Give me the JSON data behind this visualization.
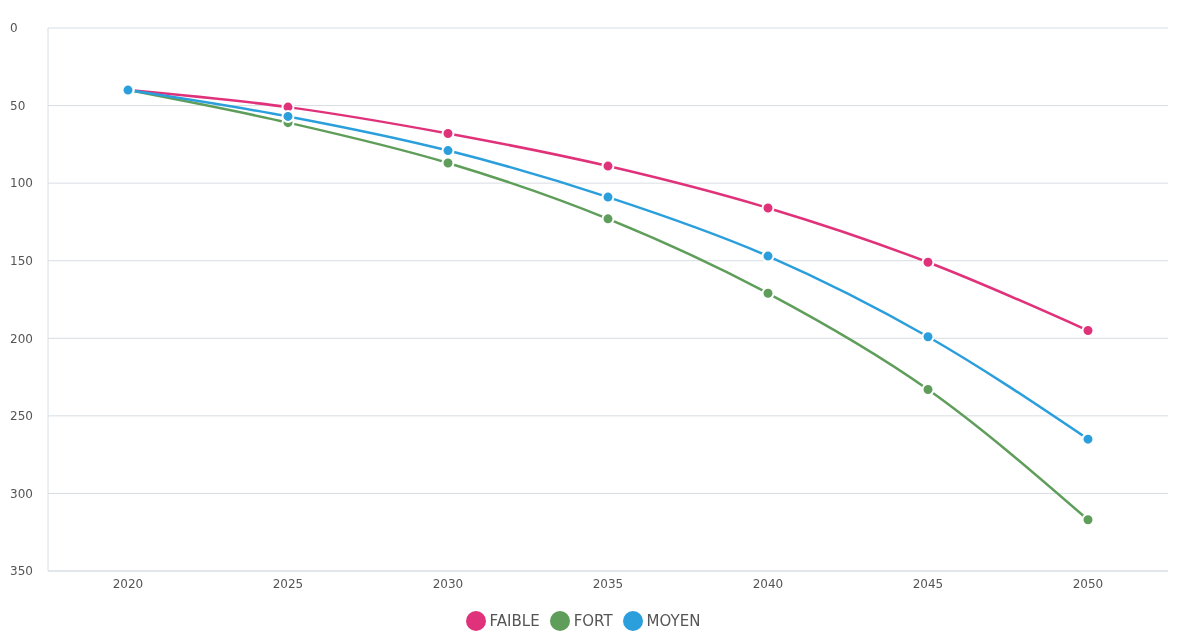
{
  "chart_data": {
    "type": "line",
    "categories": [
      "2020",
      "2025",
      "2030",
      "2035",
      "2040",
      "2045",
      "2050"
    ],
    "series": [
      {
        "name": "FAIBLE",
        "color": "#e0327a",
        "values": [
          40,
          51,
          68,
          89,
          116,
          151,
          195
        ]
      },
      {
        "name": "FORT",
        "color": "#5f9e5a",
        "values": [
          40,
          61,
          87,
          123,
          171,
          233,
          317
        ]
      },
      {
        "name": "MOYEN",
        "color": "#2b9fdc",
        "values": [
          40,
          57,
          79,
          109,
          147,
          199,
          265
        ]
      }
    ],
    "ylim": [
      350,
      0
    ],
    "yticks": [
      0,
      50,
      100,
      150,
      200,
      250,
      300,
      350
    ],
    "grid": "y",
    "legend": "bottom",
    "marker": "circle",
    "line_style": "solid"
  }
}
